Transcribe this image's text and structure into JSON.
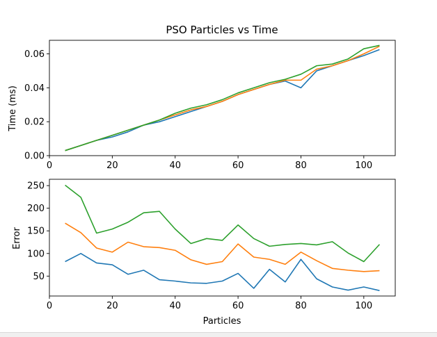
{
  "chart_data": [
    {
      "type": "line",
      "title": "PSO Particles vs Time",
      "xlabel": "",
      "ylabel": "Time (ms)",
      "xlim": [
        0,
        110
      ],
      "ylim": [
        0,
        0.068
      ],
      "xticks": [
        0,
        20,
        40,
        60,
        80,
        100
      ],
      "yticks": [
        0.0,
        0.02,
        0.04,
        0.06
      ],
      "ytick_labels": [
        "0.00",
        "0.02",
        "0.04",
        "0.06"
      ],
      "grid": false,
      "x": [
        5,
        10,
        15,
        20,
        25,
        30,
        35,
        40,
        45,
        50,
        55,
        60,
        65,
        70,
        75,
        80,
        85,
        90,
        95,
        100,
        105
      ],
      "series": [
        {
          "color": "#1f77b4",
          "values": [
            0.003,
            0.006,
            0.009,
            0.011,
            0.014,
            0.018,
            0.02,
            0.023,
            0.026,
            0.029,
            0.032,
            0.036,
            0.039,
            0.042,
            0.044,
            0.04,
            0.05,
            0.053,
            0.056,
            0.059,
            0.0625
          ]
        },
        {
          "color": "#ff7f0e",
          "values": [
            0.003,
            0.006,
            0.009,
            0.012,
            0.015,
            0.018,
            0.021,
            0.024,
            0.027,
            0.029,
            0.032,
            0.036,
            0.039,
            0.042,
            0.0445,
            0.0445,
            0.051,
            0.053,
            0.056,
            0.06,
            0.0645
          ]
        },
        {
          "color": "#2ca02c",
          "values": [
            0.003,
            0.006,
            0.009,
            0.012,
            0.015,
            0.018,
            0.021,
            0.025,
            0.028,
            0.03,
            0.033,
            0.037,
            0.04,
            0.043,
            0.045,
            0.048,
            0.053,
            0.054,
            0.057,
            0.063,
            0.065
          ]
        }
      ]
    },
    {
      "type": "line",
      "title": "",
      "xlabel": "Particles",
      "ylabel": "Error",
      "xlim": [
        0,
        110
      ],
      "ylim": [
        6,
        264
      ],
      "xticks": [
        0,
        20,
        40,
        60,
        80,
        100
      ],
      "yticks": [
        50,
        100,
        150,
        200,
        250
      ],
      "ytick_labels": [
        "50",
        "100",
        "150",
        "200",
        "250"
      ],
      "grid": false,
      "x": [
        5,
        10,
        15,
        20,
        25,
        30,
        35,
        40,
        45,
        50,
        55,
        60,
        65,
        70,
        75,
        80,
        85,
        90,
        95,
        100,
        105
      ],
      "series": [
        {
          "color": "#1f77b4",
          "values": [
            82,
            100,
            79,
            75,
            54,
            63,
            42,
            39,
            35,
            34,
            39,
            56,
            23,
            65,
            37,
            87,
            44,
            26,
            19,
            26,
            18
          ]
        },
        {
          "color": "#ff7f0e",
          "values": [
            167,
            146,
            112,
            103,
            125,
            115,
            113,
            107,
            86,
            76,
            82,
            121,
            92,
            87,
            76,
            103,
            84,
            67,
            63,
            60,
            62
          ]
        },
        {
          "color": "#2ca02c",
          "values": [
            251,
            224,
            145,
            154,
            169,
            190,
            193,
            154,
            122,
            133,
            129,
            163,
            133,
            116,
            120,
            122,
            119,
            126,
            101,
            82,
            120
          ]
        }
      ]
    }
  ]
}
